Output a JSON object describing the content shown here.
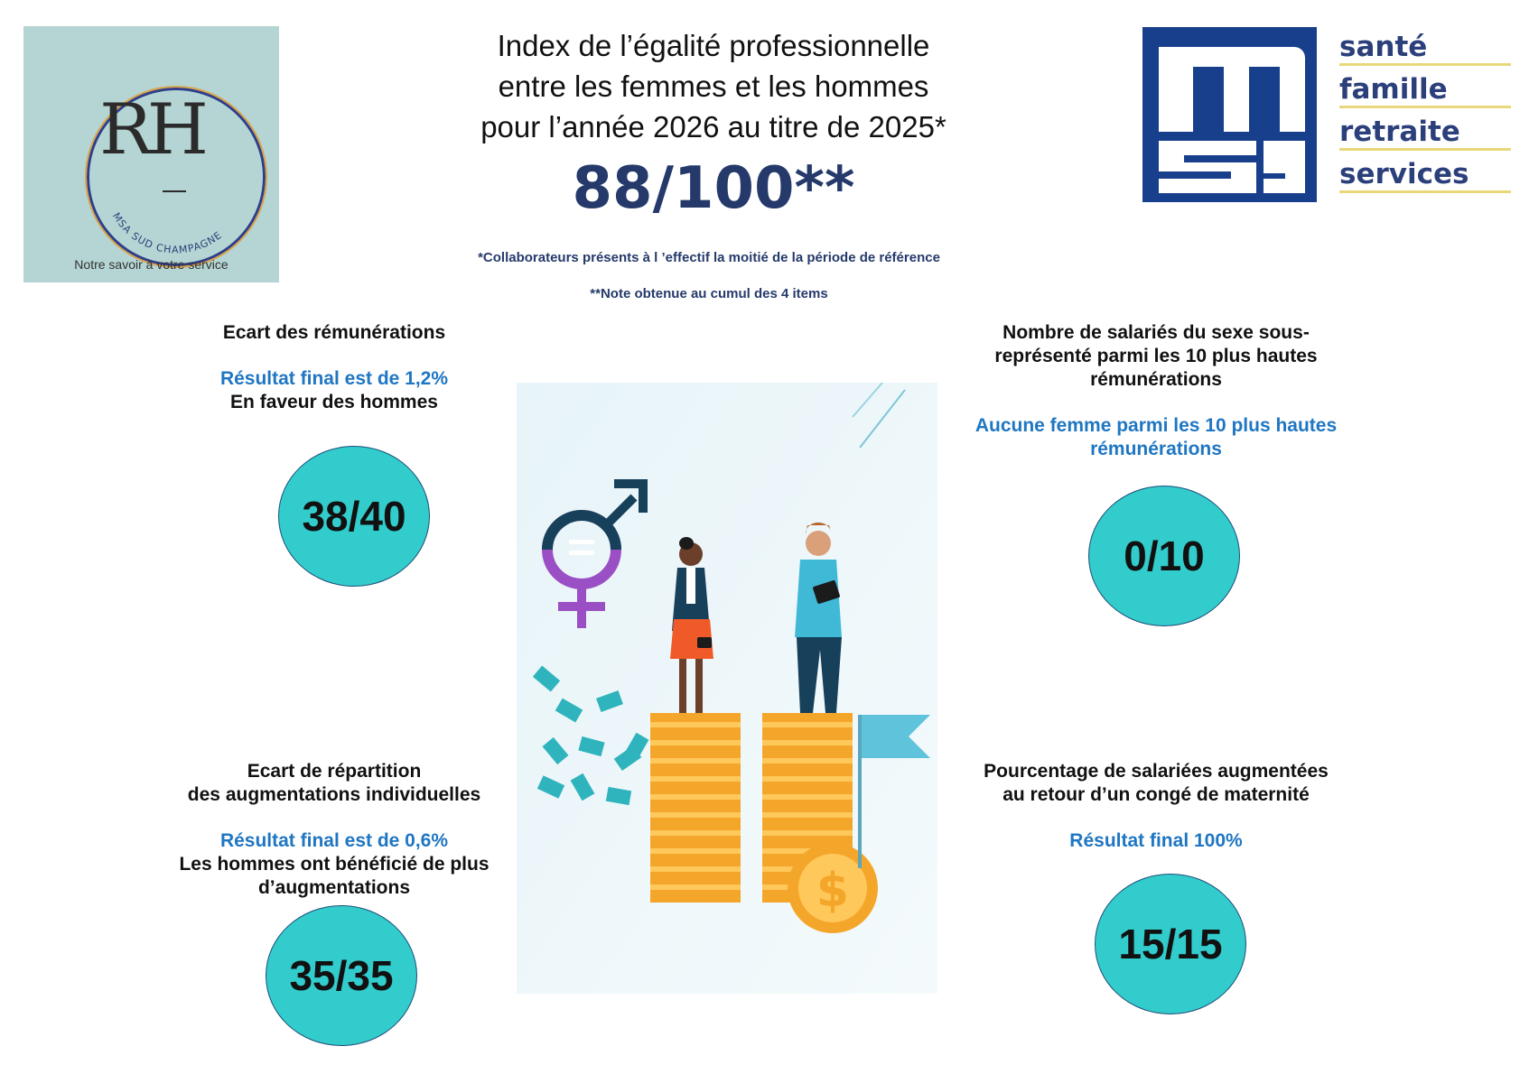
{
  "rh_logo": {
    "letters": "RH",
    "arc_text": "MSA SUD CHAMPAGNE",
    "tagline": "Notre savoir à votre service"
  },
  "msa_logo": {
    "mark": "msa",
    "words": [
      "santé",
      "famille",
      "retraite",
      "services"
    ]
  },
  "header": {
    "title_lines": [
      "Index de l’égalité professionnelle",
      "entre les femmes et les hommes",
      "pour l’année 2026 au titre de 2025*"
    ],
    "total_score": "88/100**",
    "note_1": "*Collaborateurs présents à l ’effectif la moitié de la période de référence",
    "note_2": "**Note obtenue au cumul des 4 items"
  },
  "sections": {
    "remunerations": {
      "title": "Ecart des rémunérations",
      "result": "Résultat final est de 1,2%",
      "detail": "En faveur des hommes",
      "score": "38/40"
    },
    "hautes_remunerations": {
      "title_lines": [
        "Nombre de salariés du sexe sous-",
        "représenté parmi les 10 plus hautes",
        "rémunérations"
      ],
      "result_lines": [
        "Aucune femme parmi les 10 plus hautes",
        "rémunérations"
      ],
      "score": "0/10"
    },
    "augmentations": {
      "title_lines": [
        "Ecart de répartition",
        "des augmentations individuelles"
      ],
      "result": "Résultat final est de 0,6%",
      "detail_lines": [
        "Les hommes ont bénéficié de plus",
        "d’augmentations"
      ],
      "score": "35/35"
    },
    "maternite": {
      "title_lines": [
        "Pourcentage de salariées augmentées",
        "au retour d’un congé de maternité"
      ],
      "result": "Résultat final 100%",
      "score": "15/15"
    }
  },
  "colors": {
    "circle_fill": "#33cccc",
    "result_blue": "#1f76c2",
    "navy": "#253a6b",
    "msa_blue": "#183f8c"
  }
}
